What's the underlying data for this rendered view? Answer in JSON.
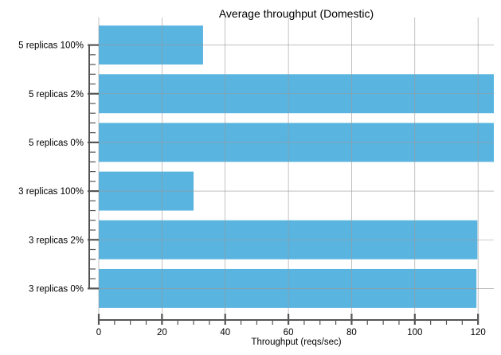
{
  "chart_data": {
    "type": "bar",
    "orientation": "horizontal",
    "title": "Average throughput (Domestic)",
    "xlabel": "Throughput (reqs/sec)",
    "ylabel": "",
    "categories": [
      "3 replicas 0%",
      "3 replicas 2%",
      "3 replicas 100%",
      "5 replicas 0%",
      "5 replicas 2%",
      "5 replicas 100%"
    ],
    "values": [
      119.5,
      119.8,
      30.0,
      125.0,
      125.0,
      33.0
    ],
    "xlim": [
      0,
      125
    ],
    "xticks": [
      0,
      20,
      40,
      60,
      80,
      100,
      120
    ],
    "grid": true,
    "bar_color": "#59b4e0"
  }
}
